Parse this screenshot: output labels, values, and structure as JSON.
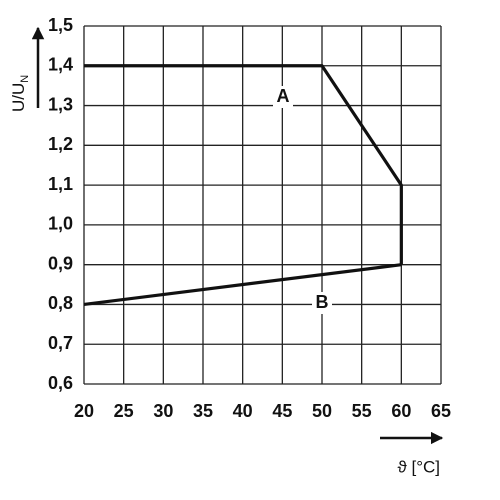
{
  "chart_data": {
    "type": "line",
    "xlabel": "ϑ [°C]",
    "ylabel": "U/U",
    "ylabel_sub": "N",
    "xlim": [
      20,
      65
    ],
    "xticks": [
      20,
      25,
      30,
      35,
      40,
      45,
      50,
      55,
      60,
      65
    ],
    "ylim": [
      0.6,
      1.5
    ],
    "yticks": [
      {
        "value": 0.6,
        "label": "0,6"
      },
      {
        "value": 0.7,
        "label": "0,7"
      },
      {
        "value": 0.8,
        "label": "0,8"
      },
      {
        "value": 0.9,
        "label": "0,9"
      },
      {
        "value": 1.0,
        "label": "1,0"
      },
      {
        "value": 1.1,
        "label": "1,1"
      },
      {
        "value": 1.2,
        "label": "1,2"
      },
      {
        "value": 1.3,
        "label": "1,3"
      },
      {
        "value": 1.4,
        "label": "1,4"
      },
      {
        "value": 1.5,
        "label": "1,5"
      }
    ],
    "grid": true,
    "series": [
      {
        "name": "A",
        "color": "#111111",
        "x": [
          20,
          50,
          60,
          60
        ],
        "values": [
          1.4,
          1.4,
          1.1,
          0.9
        ]
      },
      {
        "name": "B",
        "color": "#111111",
        "x": [
          20,
          60
        ],
        "values": [
          0.8,
          0.9
        ]
      }
    ]
  }
}
